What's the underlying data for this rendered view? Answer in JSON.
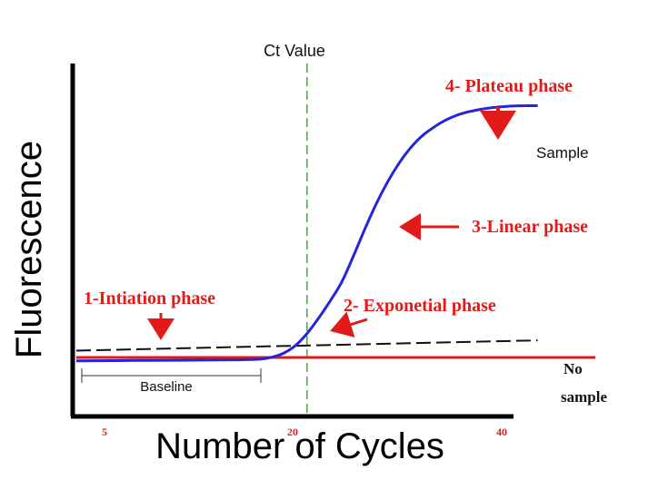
{
  "chart_data": {
    "type": "line",
    "title": "",
    "xlabel": "Number of Cycles",
    "ylabel": "Fluorescence",
    "xlim": [
      0,
      45
    ],
    "ylim": [
      0,
      100
    ],
    "x_ticks": [
      {
        "value": 5,
        "label": "5"
      },
      {
        "value": 20,
        "label": "20"
      },
      {
        "value": 40,
        "label": "40"
      }
    ],
    "grid": false,
    "series": [
      {
        "name": "Sample",
        "color": "#2424d8",
        "points": [
          [
            0,
            15.5
          ],
          [
            5,
            15.6
          ],
          [
            10,
            15.7
          ],
          [
            14,
            15.8
          ],
          [
            16,
            16.0
          ],
          [
            17,
            16.6
          ],
          [
            18,
            17.8
          ],
          [
            19,
            20.0
          ],
          [
            20,
            23.5
          ],
          [
            21,
            28.0
          ],
          [
            22,
            33.0
          ],
          [
            23,
            38.5
          ],
          [
            24,
            46.0
          ],
          [
            25,
            54.0
          ],
          [
            26,
            61.5
          ],
          [
            27,
            68.0
          ],
          [
            28,
            73.5
          ],
          [
            29,
            78.0
          ],
          [
            30,
            81.5
          ],
          [
            31,
            84.0
          ],
          [
            32,
            86.0
          ],
          [
            33,
            87.5
          ],
          [
            34,
            88.5
          ],
          [
            35,
            89.2
          ],
          [
            36,
            89.7
          ],
          [
            37,
            90.0
          ],
          [
            38,
            90.2
          ],
          [
            39,
            90.3
          ],
          [
            40,
            90.3
          ]
        ]
      },
      {
        "name": "No sample",
        "color": "#e21a1a",
        "points": [
          [
            0,
            16.5
          ],
          [
            45,
            16.5
          ]
        ]
      }
    ],
    "threshold": {
      "color": "#111111",
      "points": [
        [
          0,
          18.5
        ],
        [
          40,
          21.5
        ]
      ]
    },
    "ct_value": {
      "x": 20,
      "label": "Ct Value",
      "color": "#22c322"
    },
    "baseline": {
      "from": 0,
      "to": 16,
      "label": "Baseline"
    },
    "phase_labels": {
      "initiation": "1-Intiation phase",
      "exponential": "2- Exponetial phase",
      "linear": "3-Linear phase",
      "plateau": "4- Plateau phase"
    },
    "series_labels": {
      "sample": "Sample",
      "no_sample_line1": "No",
      "no_sample_line2": "sample"
    },
    "annotation_color": "#e21a1a"
  }
}
